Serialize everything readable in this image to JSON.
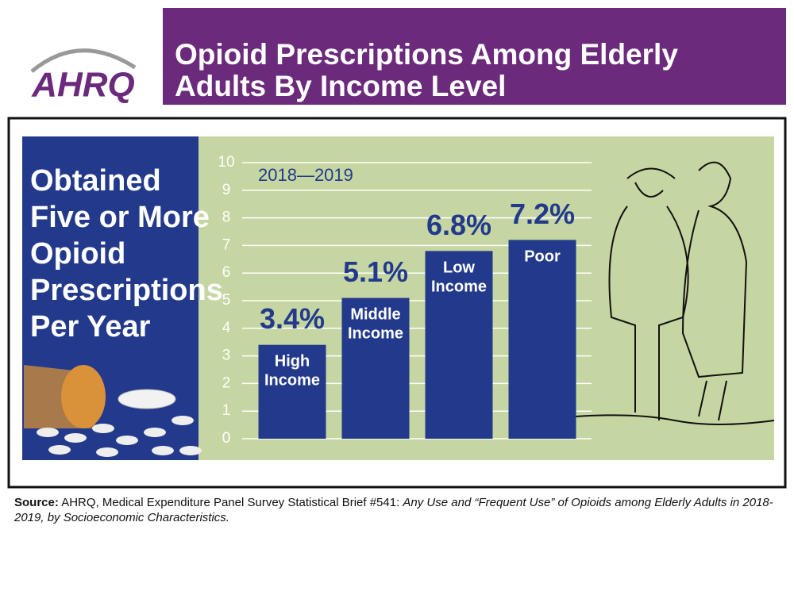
{
  "logo": "AHRQ",
  "chart_data": {
    "type": "bar",
    "title": "Opioid Prescriptions Among Elderly Adults By Income Level",
    "side_title": "Obtained Five or More Opioid Prescriptions Per Year",
    "subtitle": "2018—2019",
    "categories": [
      "High Income",
      "Middle Income",
      "Low Income",
      "Poor"
    ],
    "values": [
      3.4,
      5.1,
      6.8,
      7.2
    ],
    "value_labels": [
      "3.4%",
      "5.1%",
      "6.8%",
      "7.2%"
    ],
    "color": "#233a8c",
    "ylim": [
      0,
      10
    ],
    "yticks": [
      0,
      1,
      2,
      3,
      4,
      5,
      6,
      7,
      8,
      9,
      10
    ],
    "grid": true
  },
  "source": {
    "label": "Source:",
    "text": "AHRQ, Medical Expenditure Panel Survey Statistical Brief #541:",
    "title": "Any Use and “Frequent Use” of Opioids among Elderly Adults in 2018-2019, by Socioeconomic Characteristics."
  }
}
